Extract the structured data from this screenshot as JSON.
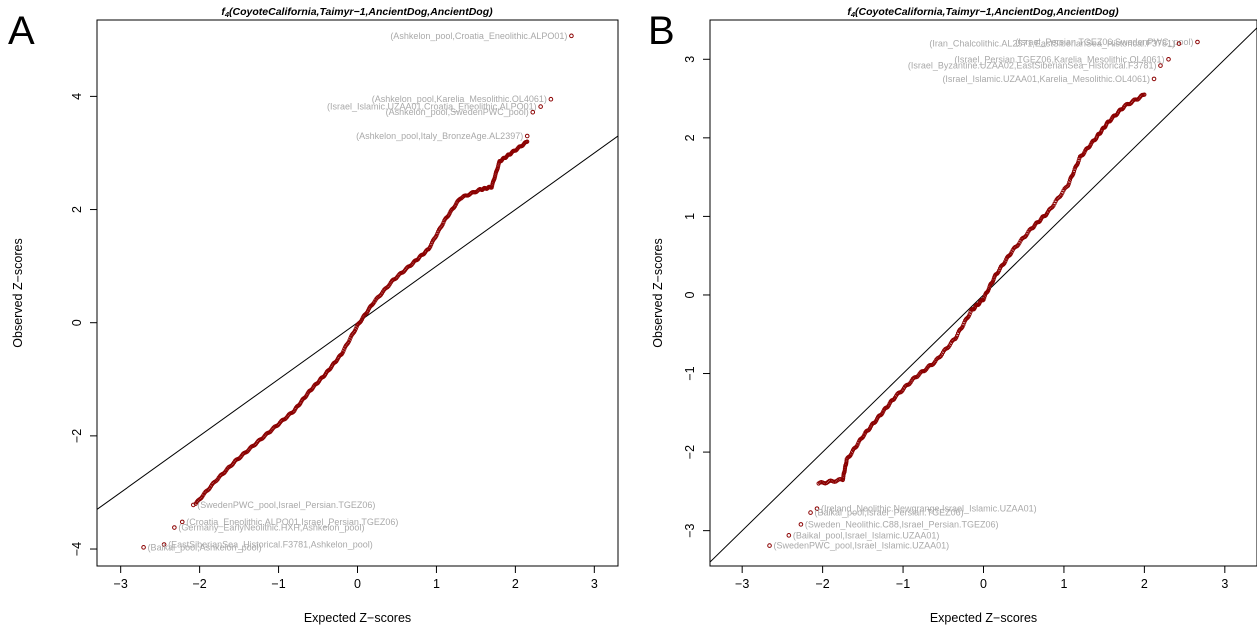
{
  "chart_data": [
    {
      "type": "scatter",
      "panel": "A",
      "title_main": "f",
      "title_sub": "4",
      "title_rest": "(CoyoteCalifornia,Taimyr−1,AncientDog,AncientDog)",
      "xlabel": "Expected Z−scores",
      "ylabel": "Observed Z−scores",
      "xlim": [
        -3.3,
        3.3
      ],
      "ylim": [
        -4.3,
        5.35
      ],
      "xticks": [
        -3,
        -2,
        -1,
        0,
        1,
        2,
        3
      ],
      "yticks": [
        -4,
        -2,
        0,
        2,
        4
      ],
      "xtick_labels": [
        "−3",
        "−2",
        "−1",
        "0",
        "1",
        "2",
        "3"
      ],
      "ytick_labels": [
        "−4",
        "−2",
        "0",
        "2",
        "4"
      ],
      "reference_line": {
        "intercept": 0,
        "slope": 1
      },
      "curve": [
        [
          -2.05,
          -3.2
        ],
        [
          -1.8,
          -2.8
        ],
        [
          -1.55,
          -2.45
        ],
        [
          -1.3,
          -2.15
        ],
        [
          -1.05,
          -1.85
        ],
        [
          -0.8,
          -1.55
        ],
        [
          -0.6,
          -1.2
        ],
        [
          -0.4,
          -0.9
        ],
        [
          -0.2,
          -0.55
        ],
        [
          0,
          -0.05
        ],
        [
          0.2,
          0.35
        ],
        [
          0.45,
          0.75
        ],
        [
          0.7,
          1.05
        ],
        [
          0.9,
          1.3
        ],
        [
          1.1,
          1.8
        ],
        [
          1.3,
          2.2
        ],
        [
          1.55,
          2.35
        ],
        [
          1.7,
          2.4
        ],
        [
          1.8,
          2.85
        ],
        [
          1.95,
          3.0
        ],
        [
          2.15,
          3.2
        ]
      ],
      "labeled_points": [
        {
          "x": 2.71,
          "y": 5.07,
          "label": "(Ashkelon_pool,Croatia_Eneolithic.ALPO01)",
          "anchor": "end"
        },
        {
          "x": 2.45,
          "y": 3.95,
          "label": "(Ashkelon_pool,Karelia_Mesolithic.OL4061)",
          "anchor": "end"
        },
        {
          "x": 2.32,
          "y": 3.82,
          "label": "(Israel_Islamic.UZAA01,Croatia_Eneolithic.ALPO01)",
          "anchor": "end"
        },
        {
          "x": 2.22,
          "y": 3.72,
          "label": "(Ashkelon_pool,SwedenPWC_pool)",
          "anchor": "end"
        },
        {
          "x": 2.15,
          "y": 3.3,
          "label": "(Ashkelon_pool,Italy_BronzeAge.AL2397)",
          "anchor": "end"
        },
        {
          "x": -2.08,
          "y": -3.22,
          "label": "(SwedenPWC_pool,Israel_Persian.TGEZ06)",
          "anchor": "start"
        },
        {
          "x": -2.22,
          "y": -3.52,
          "label": "(Croatia_Eneolithic.ALPO01,Israel_Persian.TGEZ06)",
          "anchor": "start"
        },
        {
          "x": -2.32,
          "y": -3.62,
          "label": "(Germany_EarlyNeolithic.HXH,Ashkelon_pool)",
          "anchor": "start"
        },
        {
          "x": -2.45,
          "y": -3.92,
          "label": "(EastSiberianSea_Historical.F3781,Ashkelon_pool)",
          "anchor": "start"
        },
        {
          "x": -2.71,
          "y": -3.97,
          "label": "(Baikal_pool,Ashkelon_pool)",
          "anchor": "start"
        }
      ]
    },
    {
      "type": "scatter",
      "panel": "B",
      "title_main": "f",
      "title_sub": "4",
      "title_rest": "(CoyoteCalifornia,Taimyr−1,AncientDog,AncientDog)",
      "xlabel": "Expected Z−scores",
      "ylabel": "Observed Z−scores",
      "xlim": [
        -3.4,
        3.4
      ],
      "ylim": [
        -3.45,
        3.5
      ],
      "xticks": [
        -3,
        -2,
        -1,
        0,
        1,
        2,
        3
      ],
      "yticks": [
        -3,
        -2,
        -1,
        0,
        1,
        2,
        3
      ],
      "xtick_labels": [
        "−3",
        "−2",
        "−1",
        "0",
        "1",
        "2",
        "3"
      ],
      "ytick_labels": [
        "−3",
        "−2",
        "−1",
        "0",
        "1",
        "2",
        "3"
      ],
      "reference_line": {
        "intercept": 0,
        "slope": 1
      },
      "curve": [
        [
          -2.05,
          -2.4
        ],
        [
          -1.75,
          -2.35
        ],
        [
          -1.7,
          -2.1
        ],
        [
          -1.5,
          -1.8
        ],
        [
          -1.3,
          -1.55
        ],
        [
          -1.1,
          -1.3
        ],
        [
          -0.85,
          -1.05
        ],
        [
          -0.6,
          -0.85
        ],
        [
          -0.35,
          -0.55
        ],
        [
          -0.15,
          -0.2
        ],
        [
          0,
          -0.05
        ],
        [
          0.15,
          0.25
        ],
        [
          0.35,
          0.55
        ],
        [
          0.6,
          0.85
        ],
        [
          0.8,
          1.05
        ],
        [
          1.05,
          1.4
        ],
        [
          1.2,
          1.75
        ],
        [
          1.4,
          2.0
        ],
        [
          1.55,
          2.2
        ],
        [
          1.75,
          2.4
        ],
        [
          2.0,
          2.55
        ]
      ],
      "labeled_points": [
        {
          "x": 2.66,
          "y": 3.22,
          "label": "(Israel_Persian.TGEZ06,SwedenPWC_pool)",
          "anchor": "end"
        },
        {
          "x": 2.43,
          "y": 3.2,
          "label": "(Iran_Chalcolithic.AL2571,EastSiberianSea_Historical.F3781)",
          "anchor": "end"
        },
        {
          "x": 2.3,
          "y": 3.0,
          "label": "(Israel_Persian.TGEZ06,Karelia_Mesolithic.OL4061)",
          "anchor": "end"
        },
        {
          "x": 2.2,
          "y": 2.92,
          "label": "(Israel_Byzantine.UZAA02,EastSiberianSea_Historical.F3781)",
          "anchor": "end"
        },
        {
          "x": 2.12,
          "y": 2.75,
          "label": "(Israel_Islamic.UZAA01,Karelia_Mesolithic.OL4061)",
          "anchor": "end"
        },
        {
          "x": -2.07,
          "y": -2.72,
          "label": "(Ireland_Neolithic.Newgrange,Israel_Islamic.UZAA01)",
          "anchor": "start"
        },
        {
          "x": -2.15,
          "y": -2.77,
          "label": "(Baikal_pool,Israel_Persian.TGEZ06)",
          "anchor": "start"
        },
        {
          "x": -2.27,
          "y": -2.92,
          "label": "(Sweden_Neolithic.C88,Israel_Persian.TGEZ06)",
          "anchor": "start"
        },
        {
          "x": -2.42,
          "y": -3.06,
          "label": "(Baikal_pool,Israel_Islamic.UZAA01)",
          "anchor": "start"
        },
        {
          "x": -2.66,
          "y": -3.19,
          "label": "(SwedenPWC_pool,Israel_Islamic.UZAA01)",
          "anchor": "start"
        }
      ]
    }
  ]
}
